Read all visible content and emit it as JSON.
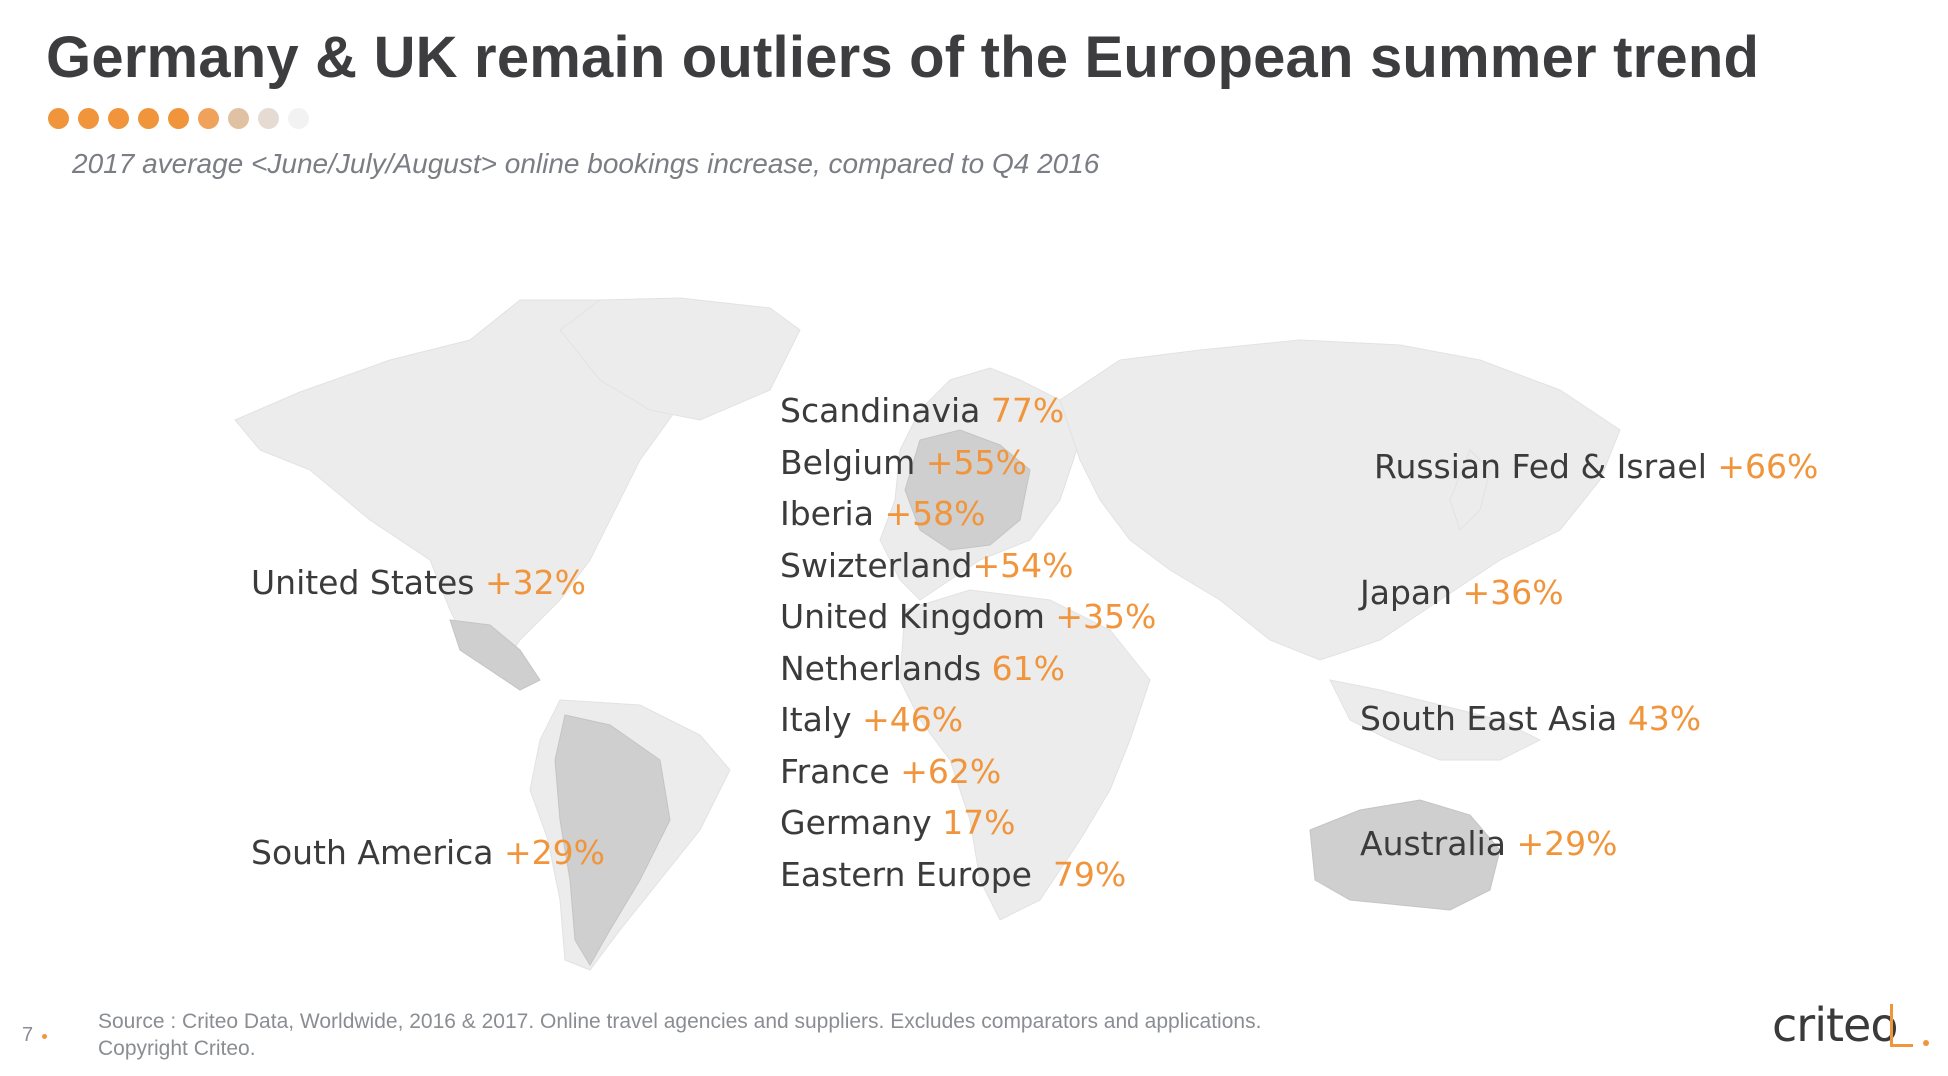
{
  "title": "Germany & UK remain outliers of the European summer trend",
  "subtitle": "2017 average <June/July/August> online bookings increase, compared to Q4 2016",
  "colors": {
    "accent": "#f0953c",
    "text": "#3b3b3b",
    "title": "#3d3d3f",
    "map_land": "#ececec",
    "map_highlight": "#c9c9c9"
  },
  "dots": [
    "#f0953c",
    "#f0953c",
    "#f0953c",
    "#f0953c",
    "#f0953c",
    "#f0a15a",
    "#e0c2a3",
    "#e5dbd2",
    "#f2f2f2"
  ],
  "regions": {
    "us": {
      "name": "United States",
      "value": "+32%"
    },
    "sa": {
      "name": "South America",
      "value": "+29%"
    },
    "europe": [
      {
        "name": "Scandinavia",
        "value": "77%"
      },
      {
        "name": "Belgium",
        "value": "+55%"
      },
      {
        "name": "Iberia",
        "value": "+58%"
      },
      {
        "name": "Swizterland",
        "value": "+54%"
      },
      {
        "name": "United Kingdom",
        "value": "+35%"
      },
      {
        "name": "Netherlands",
        "value": "61%"
      },
      {
        "name": "Italy",
        "value": "+46%"
      },
      {
        "name": "France",
        "value": "+62%"
      },
      {
        "name": "Germany",
        "value": "17%"
      },
      {
        "name": "Eastern Europe",
        "value": "79%"
      }
    ],
    "russia": {
      "name": "Russian Fed & Israel",
      "value": "+66%"
    },
    "japan": {
      "name": "Japan",
      "value": "+36%"
    },
    "sea": {
      "name": "South East Asia",
      "value": "43%"
    },
    "australia": {
      "name": "Australia",
      "value": "+29%"
    }
  },
  "footer": {
    "source_line1": "Source : Criteo Data, Worldwide, 2016 & 2017. Online travel agencies and suppliers. Excludes comparators and applications.",
    "source_line2": "Copyright Criteo.",
    "page_number": "7",
    "logo": "criteo"
  }
}
